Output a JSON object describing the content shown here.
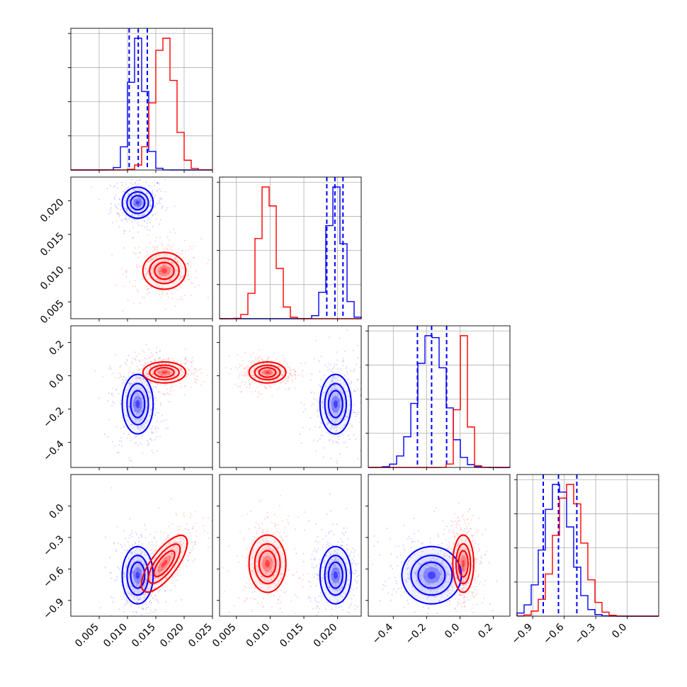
{
  "colors": {
    "series_a": "#0000ff",
    "series_b": "#ff0000",
    "grid": "#b0b0b0",
    "background": "#ffffff"
  },
  "chart_data": {
    "type": "corner",
    "grid": true,
    "series": [
      {
        "color": "#0000ff",
        "means": [
          0.0118,
          0.0197,
          -0.17,
          -0.66
        ],
        "sds": [
          0.0013,
          0.0011,
          0.085,
          0.13
        ],
        "quantile_lines": [
          [
            0.0103,
            0.0119,
            0.0135
          ],
          [
            0.0184,
            0.0196,
            0.0208
          ],
          [
            -0.255,
            -0.17,
            -0.08
          ],
          [
            -0.8,
            -0.655,
            -0.48
          ]
        ]
      },
      {
        "color": "#ff0000",
        "means": [
          0.0165,
          0.0096,
          0.02,
          -0.55
        ],
        "sds": [
          0.0018,
          0.0013,
          0.03,
          0.13
        ]
      }
    ],
    "axes": [
      {
        "lim": [
          0.0,
          0.025
        ],
        "ticks": [
          "0.005",
          "0.010",
          "0.015",
          "0.020",
          "0.025"
        ],
        "tick_values": [
          0.005,
          0.01,
          0.015,
          0.02,
          0.025
        ]
      },
      {
        "lim": [
          0.0025,
          0.0235
        ],
        "ticks": [
          "0.005",
          "0.010",
          "0.015",
          "0.020"
        ],
        "tick_values": [
          0.005,
          0.01,
          0.015,
          0.02
        ]
      },
      {
        "lim": [
          -0.55,
          0.3
        ],
        "ticks": [
          "−0.4",
          "−0.2",
          "0.0",
          "0.2"
        ],
        "tick_values": [
          -0.4,
          -0.2,
          0.0,
          0.2
        ]
      },
      {
        "lim": [
          -1.05,
          0.3
        ],
        "ticks": [
          "−0.9",
          "−0.6",
          "−0.3",
          "0.0"
        ],
        "tick_values": [
          -0.9,
          -0.6,
          -0.3,
          0.0
        ]
      }
    ]
  }
}
